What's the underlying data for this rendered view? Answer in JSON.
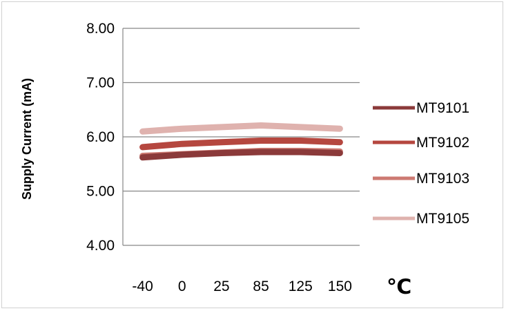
{
  "chart_data": {
    "type": "line",
    "title": "",
    "xlabel": "℃",
    "ylabel": "Supply Current (mA)",
    "categories": [
      "-40",
      "0",
      "25",
      "85",
      "125",
      "150"
    ],
    "ylim": [
      4.0,
      8.0
    ],
    "yticks": [
      "4.00",
      "5.00",
      "6.00",
      "7.00",
      "8.00"
    ],
    "grid": true,
    "legend_position": "right",
    "series": [
      {
        "name": "MT9101",
        "color": "#8b3a3a",
        "values": [
          5.62,
          5.67,
          5.7,
          5.72,
          5.72,
          5.7
        ]
      },
      {
        "name": "MT9102",
        "color": "#b5473f",
        "values": [
          5.81,
          5.87,
          5.9,
          5.93,
          5.93,
          5.9
        ]
      },
      {
        "name": "MT9103",
        "color": "#cd7a72",
        "values": [
          5.65,
          5.68,
          5.71,
          5.74,
          5.74,
          5.73
        ]
      },
      {
        "name": "MT9105",
        "color": "#dfb2ae",
        "values": [
          6.1,
          6.15,
          6.18,
          6.21,
          6.18,
          6.15
        ]
      }
    ]
  }
}
